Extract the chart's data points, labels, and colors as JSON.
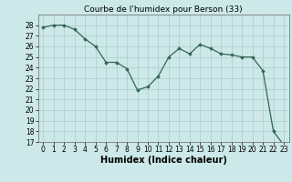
{
  "title": "Courbe de l'humidex pour Berson (33)",
  "xlabel": "Humidex (Indice chaleur)",
  "x_vals": [
    0,
    1,
    2,
    3,
    4,
    5,
    6,
    7,
    8,
    9,
    10,
    11,
    12,
    13,
    14,
    15,
    16,
    17,
    18,
    19,
    20,
    21,
    22,
    23
  ],
  "y_vals": [
    27.8,
    28.0,
    28.0,
    27.6,
    26.7,
    26.0,
    24.5,
    24.5,
    23.9,
    21.9,
    22.2,
    23.2,
    25.0,
    25.8,
    25.3,
    26.2,
    25.8,
    25.3,
    25.2,
    25.0,
    25.0,
    23.7,
    18.0,
    16.7
  ],
  "line_color": "#336655",
  "bg_color": "#cce8e8",
  "grid_color": "#aacccc",
  "ylim": [
    17,
    29
  ],
  "xlim": [
    -0.5,
    23.5
  ],
  "yticks": [
    17,
    18,
    19,
    20,
    21,
    22,
    23,
    24,
    25,
    26,
    27,
    28
  ],
  "xticks": [
    0,
    1,
    2,
    3,
    4,
    5,
    6,
    7,
    8,
    9,
    10,
    11,
    12,
    13,
    14,
    15,
    16,
    17,
    18,
    19,
    20,
    21,
    22,
    23
  ],
  "title_fontsize": 6.5,
  "label_fontsize": 7,
  "tick_fontsize": 5.5
}
